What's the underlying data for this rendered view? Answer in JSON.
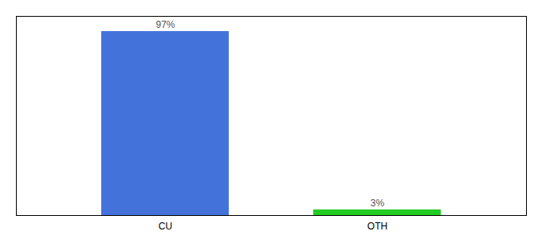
{
  "chart_data": {
    "type": "bar",
    "categories": [
      "CU",
      "OTH"
    ],
    "values": [
      97,
      3
    ],
    "value_labels": [
      "97%",
      "3%"
    ],
    "colors": [
      "#4472db",
      "#22cc22"
    ],
    "ylim": [
      0,
      105
    ],
    "grid": false,
    "data_labels": true,
    "tick_labels": "x"
  }
}
